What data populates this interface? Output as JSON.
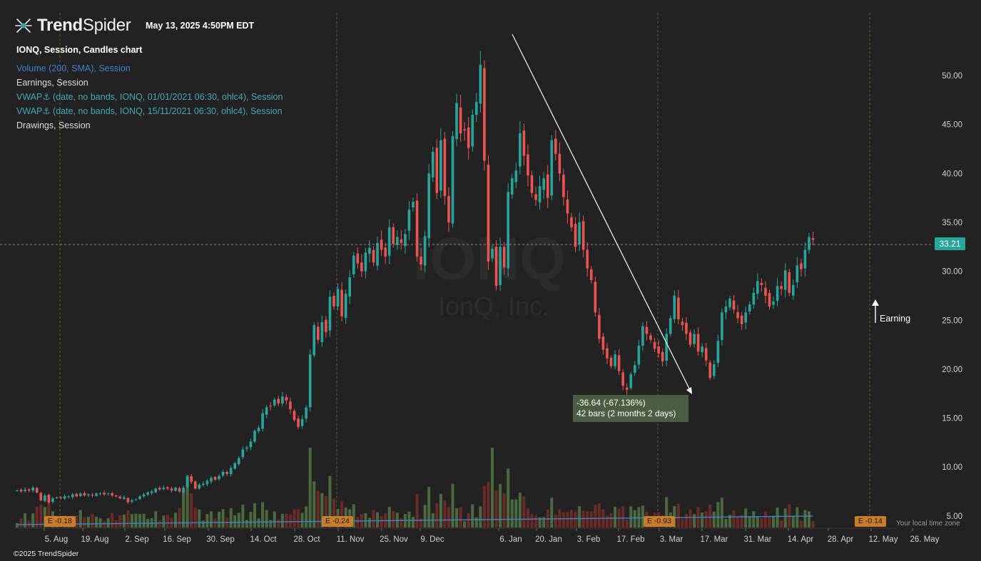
{
  "header": {
    "brand_bold": "Trend",
    "brand_light": "Spider",
    "datetime": "May 13, 2025 4:50PM EDT"
  },
  "legend": {
    "main": "IONQ, Session, Candles chart",
    "volume": "Volume (200, SMA), Session",
    "earnings": "Earnings, Session",
    "vwap1": "VWAP⚓ (date, no bands, IONQ, 01/01/2021 06:30, ohlc4), Session",
    "vwap2": "VWAP⚓ (date, no bands, IONQ, 15/11/2021 06:30, ohlc4), Session",
    "drawings": "Drawings, Session"
  },
  "watermark": {
    "symbol": "IONQ",
    "name": "IonQ, Inc."
  },
  "footer": {
    "copyright": "©2025 TrendSpider",
    "timezone": "Your local time zone"
  },
  "current_price": "33.21",
  "measure": {
    "line1": "-36.64 (-67.136%)",
    "line2": "42 bars (2 months 2 days)"
  },
  "annotation_label": "Earning",
  "earnings_badges": [
    "E -0.18",
    "E -0.24",
    "E -0.93",
    "E -0.14"
  ],
  "colors": {
    "up": "#26a69a",
    "down": "#ef5350",
    "background": "#222222",
    "sma": "#3b83c9"
  },
  "chart_data": {
    "type": "candlestick",
    "symbol": "IONQ",
    "y_axis": {
      "ticks": [
        5,
        10,
        15,
        20,
        25,
        30,
        35,
        40,
        45,
        50
      ],
      "tick_labels": [
        "5.00",
        "10.00",
        "15.00",
        "20.00",
        "25.00",
        "30.00",
        "35.00",
        "40.00",
        "45.00",
        "50.00"
      ],
      "range": [
        4.5,
        54
      ]
    },
    "x_axis": {
      "labels": [
        "5. Aug",
        "19. Aug",
        "2. Sep",
        "16. Sep",
        "30. Sep",
        "14. Oct",
        "28. Oct",
        "11. Nov",
        "25. Nov",
        "9. Dec",
        "6. Jan",
        "20. Jan",
        "3. Feb",
        "17. Feb",
        "3. Mar",
        "17. Mar",
        "31. Mar",
        "14. Apr",
        "28. Apr",
        "12. May",
        "26. May"
      ]
    },
    "closes": [
      7.6,
      7.5,
      7.7,
      7.6,
      7.9,
      7.4,
      6.6,
      7.1,
      6.4,
      6.8,
      6.9,
      6.8,
      7.0,
      7.0,
      7.2,
      7.0,
      7.3,
      7.1,
      7.2,
      7.1,
      7.3,
      7.3,
      7.2,
      7.3,
      7.1,
      7.0,
      6.8,
      6.9,
      6.4,
      6.6,
      6.7,
      7.0,
      7.2,
      7.4,
      7.5,
      7.8,
      7.7,
      7.9,
      7.8,
      7.6,
      7.9,
      7.5,
      7.9,
      9.0,
      8.5,
      7.8,
      8.2,
      8.3,
      8.6,
      8.9,
      8.7,
      9.1,
      9.5,
      9.3,
      9.9,
      10.4,
      10.9,
      11.8,
      12.0,
      12.6,
      13.7,
      14.0,
      15.5,
      16.1,
      16.2,
      16.9,
      16.5,
      17.2,
      16.8,
      15.9,
      14.8,
      14.1,
      14.9,
      16.1,
      21.5,
      24.5,
      23.0,
      24.8,
      23.8,
      27.4,
      26.4,
      28.2,
      25.4,
      27.7,
      29.4,
      31.6,
      30.8,
      30.0,
      31.9,
      32.4,
      30.9,
      32.9,
      32.2,
      31.5,
      34.5,
      32.8,
      33.5,
      32.9,
      33.8,
      36.3,
      37.1,
      31.5,
      30.7,
      33.6,
      40.0,
      42.2,
      38.0,
      43.4,
      37.7,
      35.0,
      43.8,
      47.2,
      44.1,
      44.4,
      42.6,
      46.0,
      47.3,
      51.1,
      41.3,
      31.0,
      32.3,
      28.5,
      32.5,
      30.4,
      38.1,
      39.5,
      40.3,
      44.1,
      41.8,
      39.8,
      38.0,
      37.3,
      38.7,
      39.5,
      37.5,
      43.4,
      42.0,
      40.0,
      37.6,
      35.9,
      34.5,
      32.5,
      35.0,
      32.2,
      30.3,
      29.1,
      25.8,
      23.1,
      22.0,
      21.1,
      20.3,
      21.5,
      19.8,
      18.3,
      17.9,
      19.5,
      20.4,
      22.4,
      24.4,
      23.6,
      23.0,
      22.1,
      21.6,
      20.8,
      23.6,
      25.2,
      27.5,
      25.1,
      24.5,
      23.6,
      22.5,
      23.6,
      21.8,
      22.3,
      20.9,
      19.1,
      20.5,
      22.9,
      25.8,
      26.4,
      27.2,
      26.1,
      25.2,
      24.6,
      25.8,
      26.6,
      27.8,
      29.0,
      28.6,
      27.5,
      26.4,
      26.9,
      28.5,
      28.2,
      30.1,
      27.8,
      28.6,
      30.6,
      30.2,
      32.2,
      33.5,
      33.2
    ]
  }
}
